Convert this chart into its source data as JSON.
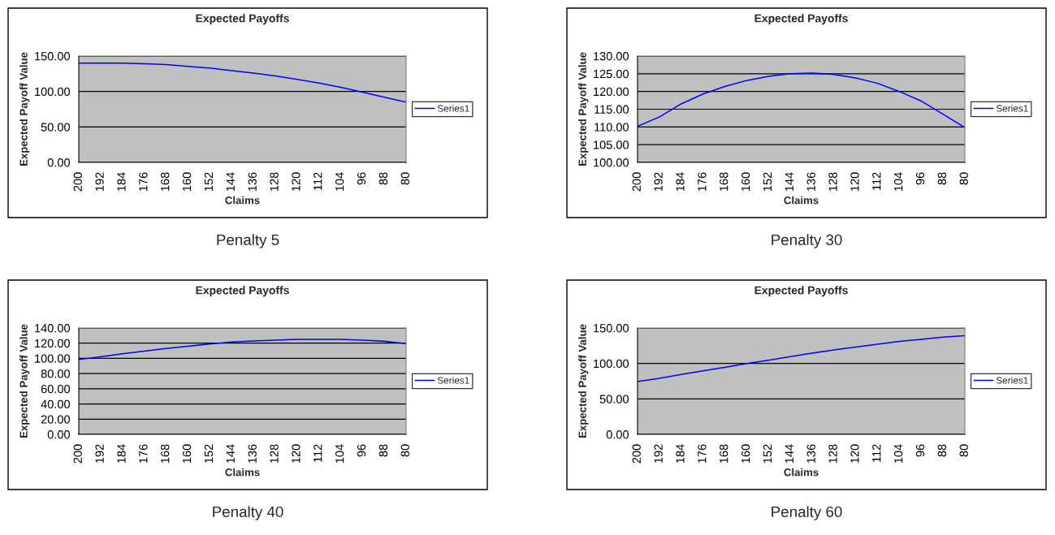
{
  "chart_data": [
    {
      "type": "line",
      "title": "Expected Payoffs",
      "xlabel": "Claims",
      "ylabel": "Expected Payoff Value",
      "annotations": [
        "Penalty 5"
      ],
      "x": [
        200,
        192,
        184,
        176,
        168,
        160,
        152,
        144,
        136,
        128,
        120,
        112,
        104,
        96,
        88,
        80
      ],
      "series": [
        {
          "name": "Series1",
          "color": "#0000ff",
          "values": [
            140,
            140,
            140,
            139,
            138,
            135.5,
            133,
            129.5,
            126,
            122,
            117,
            112,
            106,
            99,
            92,
            85
          ]
        }
      ],
      "xlim": [
        200,
        80
      ],
      "xticks": [
        200,
        192,
        184,
        176,
        168,
        160,
        152,
        144,
        136,
        128,
        120,
        112,
        104,
        96,
        88,
        80
      ],
      "ylim": [
        0,
        150
      ],
      "yticks": [
        {
          "value": 0,
          "label": "0.00"
        },
        {
          "value": 50,
          "label": "50.00"
        },
        {
          "value": 100,
          "label": "100.00"
        },
        {
          "value": 150,
          "label": "150.00"
        }
      ],
      "grid": "y",
      "legend": "right",
      "marker": "none",
      "line_style": "solid"
    },
    {
      "type": "line",
      "title": "Expected Payoffs",
      "xlabel": "Claims",
      "ylabel": "Expected Payoff Value",
      "annotations": [
        "Penalty 30"
      ],
      "x": [
        200,
        192,
        184,
        176,
        168,
        160,
        152,
        144,
        136,
        128,
        120,
        112,
        104,
        96,
        88,
        80
      ],
      "series": [
        {
          "name": "Series1",
          "color": "#0000ff",
          "values": [
            110.2,
            112.8,
            116.5,
            119.3,
            121.4,
            123.1,
            124.3,
            125,
            125.2,
            124.8,
            123.8,
            122.3,
            120,
            117.3,
            113.6,
            109.8
          ]
        }
      ],
      "xlim": [
        200,
        80
      ],
      "xticks": [
        200,
        192,
        184,
        176,
        168,
        160,
        152,
        144,
        136,
        128,
        120,
        112,
        104,
        96,
        88,
        80
      ],
      "ylim": [
        100,
        130
      ],
      "yticks": [
        {
          "value": 100,
          "label": "100.00"
        },
        {
          "value": 105,
          "label": "105.00"
        },
        {
          "value": 110,
          "label": "110.00"
        },
        {
          "value": 115,
          "label": "115.00"
        },
        {
          "value": 120,
          "label": "120.00"
        },
        {
          "value": 125,
          "label": "125.00"
        },
        {
          "value": 130,
          "label": "130.00"
        }
      ],
      "grid": "y",
      "legend": "right",
      "marker": "none",
      "line_style": "solid"
    },
    {
      "type": "line",
      "title": "Expected Payoffs",
      "xlabel": "Claims",
      "ylabel": "Expected Payoff Value",
      "annotations": [
        "Penalty 40"
      ],
      "x": [
        200,
        192,
        184,
        176,
        168,
        160,
        152,
        144,
        136,
        128,
        120,
        112,
        104,
        96,
        88,
        80
      ],
      "series": [
        {
          "name": "Series1",
          "color": "#0000ff",
          "values": [
            98.5,
            102,
            106,
            109.5,
            113,
            116,
            119,
            121.5,
            123,
            124,
            125,
            125,
            125,
            124,
            122.5,
            119.5
          ]
        }
      ],
      "xlim": [
        200,
        80
      ],
      "xticks": [
        200,
        192,
        184,
        176,
        168,
        160,
        152,
        144,
        136,
        128,
        120,
        112,
        104,
        96,
        88,
        80
      ],
      "ylim": [
        0,
        140
      ],
      "yticks": [
        {
          "value": 0,
          "label": "0.00"
        },
        {
          "value": 20,
          "label": "20.00"
        },
        {
          "value": 40,
          "label": "40.00"
        },
        {
          "value": 60,
          "label": "60.00"
        },
        {
          "value": 80,
          "label": "80.00"
        },
        {
          "value": 100,
          "label": "100.00"
        },
        {
          "value": 120,
          "label": "120.00"
        },
        {
          "value": 140,
          "label": "140.00"
        }
      ],
      "grid": "y",
      "legend": "right",
      "marker": "none",
      "line_style": "solid"
    },
    {
      "type": "line",
      "title": "Expected Payoffs",
      "xlabel": "Claims",
      "ylabel": "Expected Payoff Value",
      "annotations": [
        "Penalty 60"
      ],
      "x": [
        200,
        192,
        184,
        176,
        168,
        160,
        152,
        144,
        136,
        128,
        120,
        112,
        104,
        96,
        88,
        80
      ],
      "series": [
        {
          "name": "Series1",
          "color": "#0000ff",
          "values": [
            74.5,
            79,
            84.5,
            89.5,
            94.5,
            100,
            104.5,
            109.5,
            114.5,
            119,
            123,
            127,
            131,
            134,
            137,
            139
          ]
        }
      ],
      "xlim": [
        200,
        80
      ],
      "xticks": [
        200,
        192,
        184,
        176,
        168,
        160,
        152,
        144,
        136,
        128,
        120,
        112,
        104,
        96,
        88,
        80
      ],
      "ylim": [
        0,
        150
      ],
      "yticks": [
        {
          "value": 0,
          "label": "0.00"
        },
        {
          "value": 50,
          "label": "50.00"
        },
        {
          "value": 100,
          "label": "100.00"
        },
        {
          "value": 150,
          "label": "150.00"
        }
      ],
      "grid": "y",
      "legend": "right",
      "marker": "none",
      "line_style": "solid"
    }
  ]
}
